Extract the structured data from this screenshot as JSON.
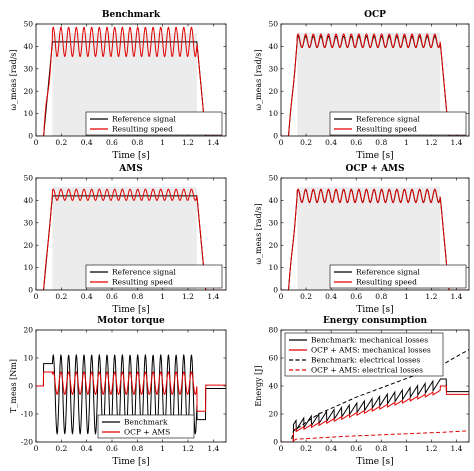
{
  "chart_data": [
    {
      "type": "line",
      "title": "Benchmark",
      "ylabel": "ω_meas [rad/s]",
      "xlabel": "Time [s]",
      "xlim": [
        0,
        1.5
      ],
      "ylim": [
        0,
        50
      ],
      "xticks": [
        "0",
        "0.2",
        "0.4",
        "0.6",
        "0.8",
        "1",
        "1.2",
        "1.4"
      ],
      "yticks": [
        "0",
        "10",
        "20",
        "30",
        "40",
        "50"
      ],
      "shaded_region": {
        "x": [
          0.13,
          1.27
        ],
        "y": [
          0,
          46
        ],
        "color": "#ececec"
      },
      "legend_position": "bottom-right",
      "series": [
        {
          "name": "Reference signal",
          "color": "#000000",
          "points": [
            [
              0,
              0
            ],
            [
              0.06,
              0
            ],
            [
              0.13,
              42
            ],
            [
              1.27,
              42
            ],
            [
              1.34,
              0
            ],
            [
              1.5,
              0
            ]
          ]
        },
        {
          "name": "Resulting speed",
          "color": "#e00000",
          "model": "trap_osc",
          "params": {
            "t0": 0.06,
            "t1": 0.13,
            "t2": 1.27,
            "t3": 1.34,
            "level": 42,
            "amp": 6.5,
            "freq": 16.5
          }
        }
      ]
    },
    {
      "type": "line",
      "title": "OCP",
      "ylabel": "ω_meas [rad/s]",
      "xlabel": "Time [s]",
      "xlim": [
        0,
        1.5
      ],
      "ylim": [
        0,
        50
      ],
      "xticks": [
        "0",
        "0.2",
        "0.4",
        "0.6",
        "0.8",
        "1",
        "1.2",
        "1.4"
      ],
      "yticks": [
        "0",
        "10",
        "20",
        "30",
        "40",
        "50"
      ],
      "shaded_region": {
        "x": [
          0.13,
          1.27
        ],
        "y": [
          0,
          46
        ],
        "color": "#ececec"
      },
      "legend_position": "bottom-right",
      "series": [
        {
          "name": "Reference signal",
          "color": "#000000",
          "model": "trap_osc",
          "params": {
            "t0": 0.06,
            "t1": 0.13,
            "t2": 1.27,
            "t3": 1.34,
            "level": 42,
            "amp": 2.5,
            "freq": 16.5
          }
        },
        {
          "name": "Resulting speed",
          "color": "#e00000",
          "model": "trap_osc",
          "params": {
            "t0": 0.06,
            "t1": 0.13,
            "t2": 1.27,
            "t3": 1.34,
            "level": 42.5,
            "amp": 3,
            "freq": 16.5
          }
        }
      ]
    },
    {
      "type": "line",
      "title": "AMS",
      "ylabel": "",
      "xlabel": "Time [s]",
      "xlim": [
        0,
        1.5
      ],
      "ylim": [
        0,
        50
      ],
      "xticks": [
        "0",
        "0.2",
        "0.4",
        "0.6",
        "0.8",
        "1",
        "1.2",
        "1.4"
      ],
      "yticks": [
        "0",
        "10",
        "20",
        "30",
        "40",
        "50"
      ],
      "shaded_region": {
        "x": [
          0.13,
          1.27
        ],
        "y": [
          0,
          46
        ],
        "color": "#ececec"
      },
      "legend_position": "bottom-right",
      "series": [
        {
          "name": "Reference signal",
          "color": "#000000",
          "points": [
            [
              0,
              0
            ],
            [
              0.06,
              0
            ],
            [
              0.13,
              42
            ],
            [
              1.27,
              42
            ],
            [
              1.34,
              0
            ],
            [
              1.5,
              0
            ]
          ]
        },
        {
          "name": "Resulting speed",
          "color": "#e00000",
          "model": "trap_osc",
          "params": {
            "t0": 0.06,
            "t1": 0.13,
            "t2": 1.27,
            "t3": 1.34,
            "level": 42.5,
            "amp": 2.5,
            "freq": 16.5
          }
        }
      ]
    },
    {
      "type": "line",
      "title": "OCP + AMS",
      "ylabel": "ω_meas [rad/s]",
      "xlabel": "Time [s]",
      "xlim": [
        0,
        1.5
      ],
      "ylim": [
        0,
        50
      ],
      "xticks": [
        "0",
        "0.2",
        "0.4",
        "0.6",
        "0.8",
        "1",
        "1.2",
        "1.4"
      ],
      "yticks": [
        "0",
        "10",
        "20",
        "30",
        "40",
        "50"
      ],
      "shaded_region": {
        "x": [
          0.13,
          1.27
        ],
        "y": [
          0,
          46
        ],
        "color": "#ececec"
      },
      "legend_position": "bottom-right",
      "series": [
        {
          "name": "Reference signal",
          "color": "#000000",
          "model": "trap_osc",
          "params": {
            "t0": 0.06,
            "t1": 0.13,
            "t2": 1.27,
            "t3": 1.34,
            "level": 42,
            "amp": 2.8,
            "freq": 16.5
          }
        },
        {
          "name": "Resulting speed",
          "color": "#e00000",
          "model": "trap_osc",
          "params": {
            "t0": 0.06,
            "t1": 0.13,
            "t2": 1.27,
            "t3": 1.34,
            "level": 42,
            "amp": 3,
            "freq": 16.5
          }
        }
      ]
    },
    {
      "type": "line",
      "title": "Motor torque",
      "ylabel": "T_meas [Nm]",
      "xlabel": "Time [s]",
      "xlim": [
        0,
        1.5
      ],
      "ylim": [
        -20,
        20
      ],
      "xticks": [
        "0",
        "0.2",
        "0.4",
        "0.6",
        "0.8",
        "1",
        "1.2",
        "1.4"
      ],
      "yticks": [
        "-20",
        "-10",
        "0",
        "10",
        "20"
      ],
      "legend_position": "bottom-right",
      "series": [
        {
          "name": "Benchmark",
          "color": "#000000",
          "model": "torque",
          "params": {
            "t0": 0.06,
            "t1": 0.13,
            "t2": 1.27,
            "t3": 1.34,
            "base": -3,
            "accel": 8,
            "amp": 14,
            "freq": 16.5
          }
        },
        {
          "name": "OCP + AMS",
          "color": "#e00000",
          "model": "torque",
          "params": {
            "t0": 0.06,
            "t1": 0.13,
            "t2": 1.27,
            "t3": 1.34,
            "base": 1,
            "accel": 5,
            "amp": 4,
            "freq": 16.5
          }
        }
      ]
    },
    {
      "type": "line",
      "title": "Energy consumption",
      "ylabel": "Energy [J]",
      "xlabel": "Time [s]",
      "xlim": [
        0,
        1.5
      ],
      "ylim": [
        0,
        80
      ],
      "xticks": [
        "0",
        "0.2",
        "0.4",
        "0.6",
        "0.8",
        "1",
        "1.2",
        "1.4"
      ],
      "yticks": [
        "0",
        "20",
        "40",
        "60",
        "80"
      ],
      "legend_position": "top-left",
      "series": [
        {
          "name": "Benchmark: mechanical losses",
          "color": "#000000",
          "dash": "",
          "model": "energy_mech",
          "params": {
            "start": 0.1,
            "end": 1.27,
            "v0": 8,
            "v1": 38,
            "amp": 7,
            "freq": 16.5,
            "after": 45,
            "final": 36
          }
        },
        {
          "name": "OCP + AMS: mechanical losses",
          "color": "#e00000",
          "dash": "",
          "model": "energy_mech",
          "params": {
            "start": 0.1,
            "end": 1.27,
            "v0": 7,
            "v1": 35,
            "amp": 2,
            "freq": 16.5,
            "after": 40,
            "final": 34
          }
        },
        {
          "name": "Benchmark: electrical losses",
          "color": "#000000",
          "dash": "4,2.5",
          "points": [
            [
              0,
              0
            ],
            [
              0.08,
              0
            ],
            [
              0.1,
              8
            ],
            [
              0.3,
              20
            ],
            [
              0.6,
              32
            ],
            [
              0.9,
              42
            ],
            [
              1.2,
              52
            ],
            [
              1.27,
              54
            ],
            [
              1.34,
              58
            ],
            [
              1.5,
              66
            ]
          ]
        },
        {
          "name": "OCP + AMS: electrical losses",
          "color": "#e00000",
          "dash": "4,2.5",
          "points": [
            [
              0,
              0
            ],
            [
              0.08,
              0
            ],
            [
              0.12,
              2
            ],
            [
              0.5,
              4
            ],
            [
              0.9,
              5.5
            ],
            [
              1.3,
              7
            ],
            [
              1.5,
              8
            ]
          ]
        }
      ]
    }
  ]
}
